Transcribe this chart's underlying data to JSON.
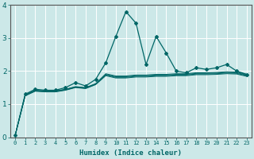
{
  "xlabel": "Humidex (Indice chaleur)",
  "background_color": "#cce8e8",
  "grid_color": "#b0d0d0",
  "line_color": "#006666",
  "xlim": [
    -0.5,
    23.5
  ],
  "ylim": [
    0,
    4
  ],
  "yticks": [
    0,
    1,
    2,
    3,
    4
  ],
  "xticks": [
    0,
    1,
    2,
    3,
    4,
    5,
    6,
    7,
    8,
    9,
    10,
    11,
    12,
    13,
    14,
    15,
    16,
    17,
    18,
    19,
    20,
    21,
    22,
    23
  ],
  "main_series": [
    0.05,
    1.3,
    1.45,
    1.42,
    1.42,
    1.5,
    1.65,
    1.55,
    1.75,
    2.25,
    3.05,
    3.8,
    3.45,
    2.2,
    3.05,
    2.55,
    2.0,
    1.95,
    2.1,
    2.05,
    2.1,
    2.2,
    2.0,
    1.9
  ],
  "band_series": [
    [
      0.05,
      1.28,
      1.42,
      1.4,
      1.4,
      1.45,
      1.53,
      1.5,
      1.62,
      1.92,
      1.85,
      1.85,
      1.88,
      1.88,
      1.9,
      1.9,
      1.92,
      1.92,
      1.95,
      1.95,
      1.96,
      1.98,
      1.97,
      1.9
    ],
    [
      0.05,
      1.27,
      1.41,
      1.39,
      1.39,
      1.44,
      1.52,
      1.49,
      1.61,
      1.9,
      1.83,
      1.83,
      1.86,
      1.86,
      1.88,
      1.88,
      1.9,
      1.9,
      1.93,
      1.93,
      1.94,
      1.96,
      1.95,
      1.88
    ],
    [
      0.05,
      1.26,
      1.4,
      1.38,
      1.38,
      1.43,
      1.51,
      1.48,
      1.6,
      1.88,
      1.81,
      1.81,
      1.84,
      1.84,
      1.86,
      1.86,
      1.88,
      1.88,
      1.91,
      1.91,
      1.92,
      1.94,
      1.93,
      1.86
    ],
    [
      0.05,
      1.25,
      1.39,
      1.37,
      1.37,
      1.42,
      1.5,
      1.47,
      1.59,
      1.86,
      1.79,
      1.79,
      1.82,
      1.82,
      1.84,
      1.84,
      1.86,
      1.86,
      1.89,
      1.89,
      1.9,
      1.92,
      1.91,
      1.84
    ]
  ]
}
